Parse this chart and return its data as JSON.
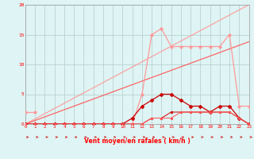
{
  "x": [
    0,
    1,
    2,
    3,
    4,
    5,
    6,
    7,
    8,
    9,
    10,
    11,
    12,
    13,
    14,
    15,
    16,
    17,
    18,
    19,
    20,
    21,
    22,
    23
  ],
  "line_light_peak": [
    0,
    0,
    0,
    0,
    0,
    0,
    0,
    0,
    0,
    0,
    0,
    0,
    5,
    15,
    16,
    13,
    13,
    13,
    13,
    13,
    13,
    15,
    3,
    3
  ],
  "line_light_flat": [
    2,
    2,
    0,
    0,
    0,
    0,
    0,
    0,
    0,
    0,
    0,
    0,
    0,
    0,
    0,
    0,
    0,
    0,
    0,
    0,
    0,
    0,
    0,
    0
  ],
  "line_diag1": [
    0,
    0.87,
    1.74,
    2.61,
    3.48,
    4.35,
    5.22,
    6.09,
    6.96,
    7.83,
    8.7,
    9.57,
    10.44,
    11.31,
    12.18,
    13.05,
    13.92,
    14.79,
    15.66,
    16.53,
    17.4,
    18.27,
    19.14,
    20.0
  ],
  "line_diag2": [
    0,
    0.6,
    1.2,
    1.8,
    2.4,
    3.0,
    3.6,
    4.2,
    4.8,
    5.4,
    6.0,
    6.6,
    7.2,
    7.8,
    8.4,
    9.0,
    9.6,
    10.2,
    10.8,
    11.4,
    12.0,
    12.6,
    13.2,
    13.8
  ],
  "line_dark_peak": [
    0,
    0,
    0,
    0,
    0,
    0,
    0,
    0,
    0,
    0,
    0,
    1,
    3,
    4,
    5,
    5,
    4,
    3,
    3,
    2,
    3,
    3,
    1,
    0
  ],
  "line_dark_flat": [
    0,
    0,
    0,
    0,
    0,
    0,
    0,
    0,
    0,
    0,
    0,
    0,
    0,
    1,
    1,
    2,
    2,
    2,
    2,
    2,
    2,
    2,
    1,
    0
  ],
  "line_med_flat": [
    0,
    0,
    0,
    0,
    0,
    0,
    0,
    0,
    0,
    0,
    0,
    0,
    0,
    1,
    1,
    1,
    2,
    2,
    2,
    2,
    2,
    2,
    1,
    0
  ],
  "color_light": "#FF9999",
  "color_dark": "#CC0000",
  "color_med": "#FF5555",
  "bg_color": "#DFF4F4",
  "grid_color": "#B0CCCC",
  "xlabel": "Vent moyen/en rafales ( km/h )",
  "ylim": [
    0,
    20
  ],
  "xlim": [
    0,
    23
  ],
  "yticks": [
    0,
    5,
    10,
    15,
    20
  ],
  "xticks": [
    0,
    1,
    2,
    3,
    4,
    5,
    6,
    7,
    8,
    9,
    10,
    11,
    12,
    13,
    14,
    15,
    16,
    17,
    18,
    19,
    20,
    21,
    22,
    23
  ]
}
